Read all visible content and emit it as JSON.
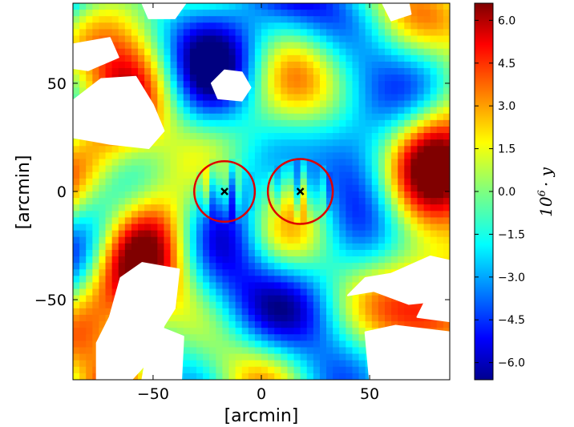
{
  "chart_data": {
    "type": "heatmap",
    "title": "",
    "xlabel": "[arcmin]",
    "ylabel": "[arcmin]",
    "xlim": [
      -87,
      87
    ],
    "ylim": [
      -87,
      87
    ],
    "x_ticks": [
      -50,
      0,
      50
    ],
    "y_ticks": [
      -50,
      0,
      50
    ],
    "x_tick_labels": [
      "−50",
      "0",
      "50"
    ],
    "y_tick_labels": [
      "−50",
      "0",
      "50"
    ],
    "colormap": "jet",
    "colorbar": {
      "label_prefix": "10",
      "label_exp": "6",
      "label_suffix": "· y",
      "range": [
        -6.6,
        6.6
      ],
      "ticks": [
        6.0,
        4.5,
        3.0,
        1.5,
        0.0,
        -1.5,
        -3.0,
        -4.5,
        -6.0
      ],
      "tick_labels": [
        "6.0",
        "4.5",
        "3.0",
        "1.5",
        "0.0",
        "−1.5",
        "−3.0",
        "−4.5",
        "−6.0"
      ]
    },
    "markers": [
      {
        "name": "cluster-left",
        "x": -17,
        "y": 0,
        "symbol": "x",
        "circle_radius": 14
      },
      {
        "name": "cluster-right",
        "x": 18,
        "y": 0,
        "symbol": "x",
        "circle_radius": 15
      }
    ],
    "masked_regions": [
      {
        "polygon": [
          [
            -87,
            42
          ],
          [
            -74,
            52
          ],
          [
            -58,
            53
          ],
          [
            -50,
            40
          ],
          [
            -45,
            28
          ],
          [
            -52,
            20
          ],
          [
            -70,
            22
          ],
          [
            -87,
            25
          ]
        ]
      },
      {
        "polygon": [
          [
            -87,
            68
          ],
          [
            -70,
            71
          ],
          [
            -66,
            62
          ],
          [
            -80,
            56
          ],
          [
            -87,
            57
          ]
        ]
      },
      {
        "polygon": [
          [
            -55,
            87
          ],
          [
            -35,
            87
          ],
          [
            -40,
            80
          ],
          [
            -52,
            80
          ]
        ]
      },
      {
        "polygon": [
          [
            -17,
            56
          ],
          [
            -9,
            55
          ],
          [
            -5,
            48
          ],
          [
            -9,
            42
          ],
          [
            -20,
            43
          ],
          [
            -23,
            50
          ]
        ]
      },
      {
        "polygon": [
          [
            56,
            87
          ],
          [
            68,
            87
          ],
          [
            69,
            82
          ],
          [
            60,
            79
          ]
        ]
      },
      {
        "polygon": [
          [
            -76,
            -87
          ],
          [
            -60,
            -87
          ],
          [
            -50,
            -76
          ],
          [
            -45,
            -62
          ],
          [
            -40,
            -54
          ],
          [
            -38,
            -36
          ],
          [
            -55,
            -33
          ],
          [
            -65,
            -40
          ],
          [
            -70,
            -58
          ],
          [
            -76,
            -70
          ]
        ]
      },
      {
        "polygon": [
          [
            -55,
            -87
          ],
          [
            -52,
            -70
          ],
          [
            -46,
            -63
          ],
          [
            -36,
            -67
          ],
          [
            -37,
            -87
          ]
        ]
      },
      {
        "polygon": [
          [
            40,
            -48
          ],
          [
            52,
            -46
          ],
          [
            68,
            -52
          ],
          [
            87,
            -50
          ],
          [
            87,
            -32
          ],
          [
            78,
            -30
          ],
          [
            60,
            -38
          ],
          [
            48,
            -40
          ]
        ]
      },
      {
        "polygon": [
          [
            48,
            -65
          ],
          [
            62,
            -62
          ],
          [
            87,
            -65
          ],
          [
            87,
            -87
          ],
          [
            50,
            -87
          ]
        ]
      },
      {
        "polygon": [
          [
            72,
            -58
          ],
          [
            87,
            -60
          ],
          [
            87,
            -50
          ],
          [
            75,
            -52
          ]
        ]
      }
    ]
  }
}
